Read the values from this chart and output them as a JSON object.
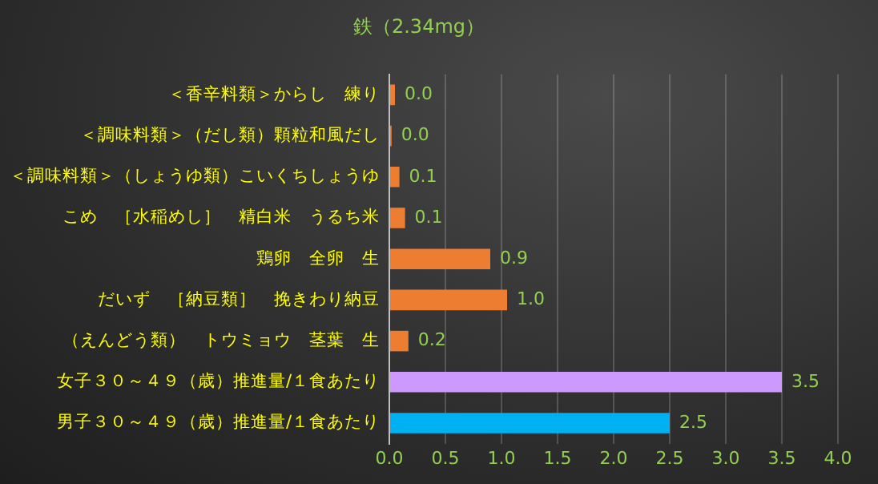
{
  "chart_data": {
    "type": "bar",
    "orientation": "horizontal",
    "title": "鉄（2.34mg）",
    "categories": [
      "＜香辛料類＞からし　練り",
      "＜調味料類＞（だし類）顆粒和風だし",
      "＜調味料類＞（しょうゆ類）こいくちしょうゆ",
      "こめ　［水稲めし］　精白米　うるち米",
      "鶏卵　全卵　生",
      "だいず　［納豆類］　挽きわり納豆",
      "（えんどう類）　トウミョウ　茎葉　生",
      "女子３０～４９（歳）推進量/１食あたり",
      "男子３０～４９（歳）推進量/１食あたり"
    ],
    "values": [
      0.05,
      0.02,
      0.09,
      0.14,
      0.9,
      1.05,
      0.17,
      3.5,
      2.5
    ],
    "value_labels": [
      "0.0",
      "0.0",
      "0.1",
      "0.1",
      "0.9",
      "1.0",
      "0.2",
      "3.5",
      "2.5"
    ],
    "colors": [
      "#ed7d31",
      "#ed7d31",
      "#ed7d31",
      "#ed7d31",
      "#ed7d31",
      "#ed7d31",
      "#ed7d31",
      "#cc99ff",
      "#00b0f0"
    ],
    "xlim": [
      0,
      4
    ],
    "xticks": [
      "0.0",
      "0.5",
      "1.0",
      "1.5",
      "2.0",
      "2.5",
      "3.0",
      "3.5",
      "4.0"
    ],
    "grid": "x",
    "legend": false
  }
}
